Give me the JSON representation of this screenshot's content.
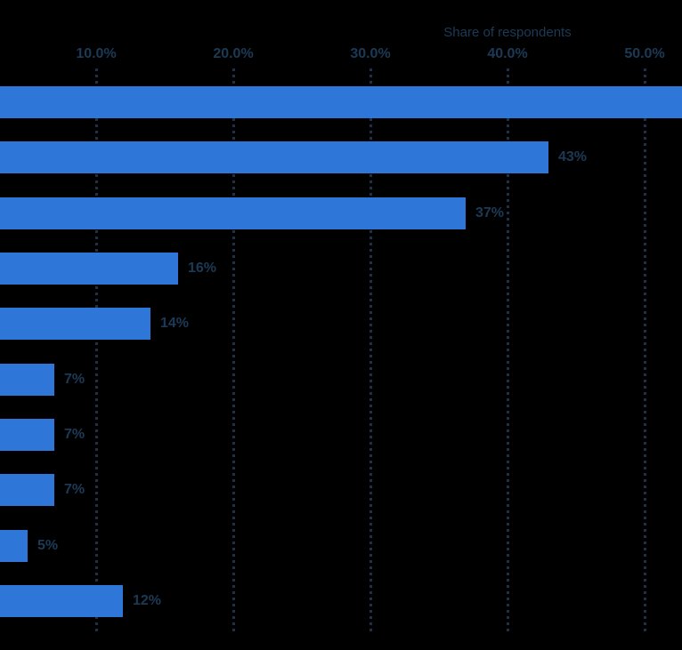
{
  "colors": {
    "background": "#000000",
    "bar": "#2e76d8",
    "text": "#1c3a56",
    "grid": "#203049"
  },
  "axis": {
    "title": "Share of respondents",
    "ticks": [
      {
        "label": "10.0%",
        "value": 10
      },
      {
        "label": "20.0%",
        "value": 20
      },
      {
        "label": "30.0%",
        "value": 30
      },
      {
        "label": "40.0%",
        "value": 40
      },
      {
        "label": "50.0%",
        "value": 50
      }
    ]
  },
  "chart_data": {
    "type": "bar",
    "orientation": "horizontal",
    "title": "",
    "xlabel": "Share of respondents",
    "ylabel": "",
    "xlim": [
      0,
      50
    ],
    "grid": "vertical-dotted",
    "legend": "none",
    "categories": [
      "",
      "",
      "",
      "",
      "",
      "",
      "",
      "",
      "",
      ""
    ],
    "values": [
      53,
      43,
      37,
      16,
      14,
      7,
      7,
      7,
      5,
      12
    ],
    "value_labels": [
      "",
      "43%",
      "37%",
      "16%",
      "14%",
      "7%",
      "7%",
      "7%",
      "5%",
      "12%"
    ],
    "first_bar_clipped_at_right_edge": true,
    "category_labels_not_visible": true
  }
}
